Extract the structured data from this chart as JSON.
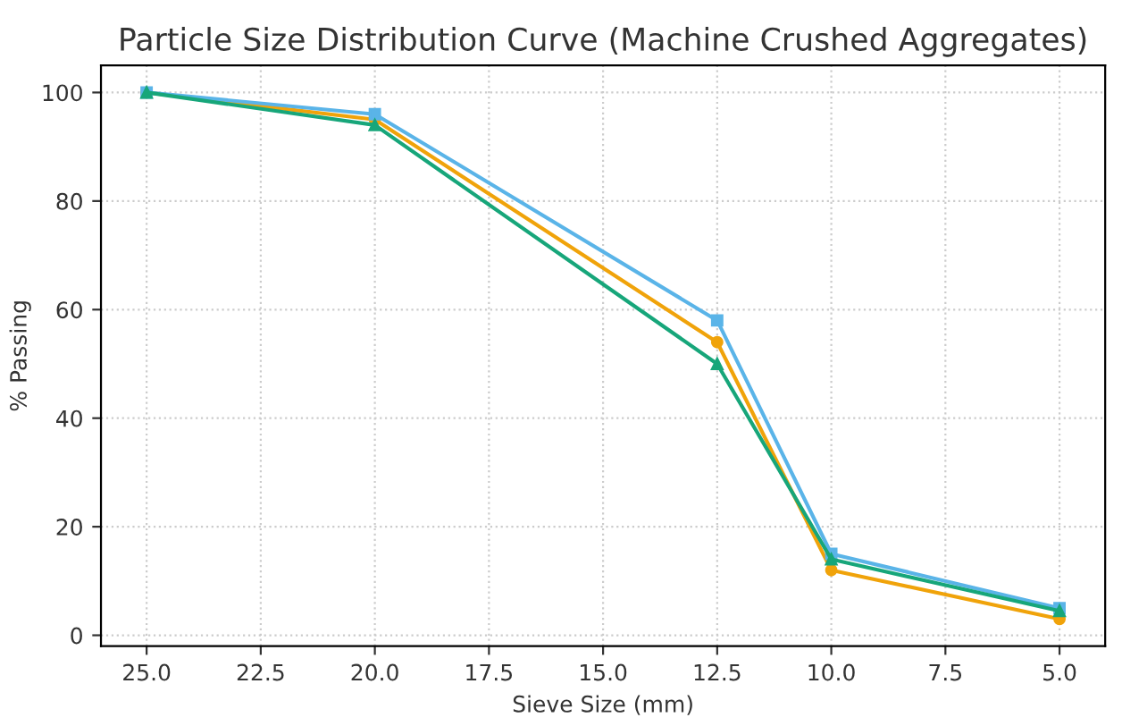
{
  "chart_data": {
    "type": "line",
    "title": "Particle Size Distribution Curve (Machine Crushed Aggregates)",
    "xlabel": "Sieve Size (mm)",
    "ylabel": "% Passing",
    "x": [
      25,
      20,
      12.5,
      10,
      5
    ],
    "series": [
      {
        "color": "#f0a30a",
        "marker": "circle",
        "values": [
          100,
          95,
          54,
          12,
          3
        ]
      },
      {
        "color": "#5ab4e8",
        "marker": "square",
        "values": [
          100,
          96,
          58,
          15,
          5
        ]
      },
      {
        "color": "#17a67a",
        "marker": "triangle",
        "values": [
          100,
          94,
          50,
          14,
          4.5
        ]
      }
    ],
    "xlim": [
      26,
      4
    ],
    "ylim": [
      -2,
      105
    ],
    "xticks": [
      {
        "value": 25,
        "label": "25.0"
      },
      {
        "value": 22.5,
        "label": "22.5"
      },
      {
        "value": 20,
        "label": "20.0"
      },
      {
        "value": 17.5,
        "label": "17.5"
      },
      {
        "value": 15,
        "label": "15.0"
      },
      {
        "value": 12.5,
        "label": "12.5"
      },
      {
        "value": 10,
        "label": "10.0"
      },
      {
        "value": 7.5,
        "label": "7.5"
      },
      {
        "value": 5,
        "label": "5.0"
      }
    ],
    "yticks": [
      0,
      20,
      40,
      60,
      80,
      100
    ],
    "grid": true,
    "line_style": "solid"
  }
}
